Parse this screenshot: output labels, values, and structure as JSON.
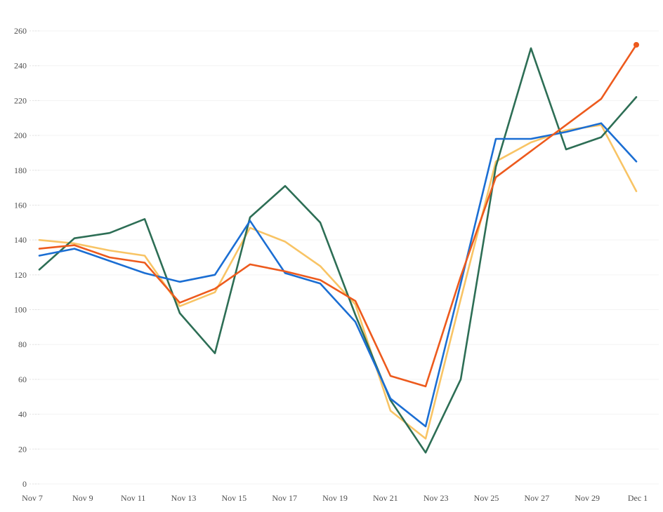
{
  "chart_data": {
    "type": "line",
    "title": "",
    "xlabel": "",
    "ylabel": "",
    "x_tick_labels": [
      "Nov 7",
      "Nov 9",
      "Nov 11",
      "Nov 13",
      "Nov 15",
      "Nov 17",
      "Nov 19",
      "Nov 21",
      "Nov 23",
      "Nov 25",
      "Nov 27",
      "Nov 29",
      "Dec 1"
    ],
    "y_tick_labels": [
      "0",
      "20",
      "40",
      "60",
      "80",
      "100",
      "120",
      "140",
      "160",
      "180",
      "200",
      "220",
      "240",
      "260"
    ],
    "y_ticks": [
      0,
      20,
      40,
      60,
      80,
      100,
      120,
      140,
      160,
      180,
      200,
      220,
      240,
      260
    ],
    "ylim": [
      0,
      260
    ],
    "grid": "horizontal-faint",
    "legend": "none",
    "background_color": "#ffffff",
    "gridline_color": "#f3f3f3",
    "tick_color": "#e2e2e2",
    "axis_text_color": "#4d4d4d",
    "series": [
      {
        "name": "yellow",
        "color": "#f8c465",
        "end_marker": false,
        "values": [
          140,
          138,
          134,
          131,
          102,
          110,
          147,
          139,
          125,
          103,
          42,
          26,
          106,
          185,
          196,
          203,
          206,
          168
        ]
      },
      {
        "name": "green",
        "color": "#2d6e55",
        "end_marker": false,
        "values": [
          123,
          141,
          144,
          152,
          98,
          75,
          153,
          171,
          150,
          97,
          48,
          18,
          60,
          182,
          250,
          192,
          199,
          222
        ]
      },
      {
        "name": "blue",
        "color": "#1b6ed3",
        "end_marker": false,
        "values": [
          131,
          135,
          128,
          121,
          116,
          120,
          151,
          121,
          115,
          93,
          49,
          33,
          115,
          198,
          198,
          202,
          207,
          185
        ]
      },
      {
        "name": "orange",
        "color": "#ed5a1d",
        "end_marker": true,
        "values": [
          135,
          137,
          130,
          127,
          104,
          112,
          126,
          122,
          117,
          105,
          62,
          56,
          119,
          176,
          191,
          206,
          221,
          252
        ]
      }
    ]
  }
}
